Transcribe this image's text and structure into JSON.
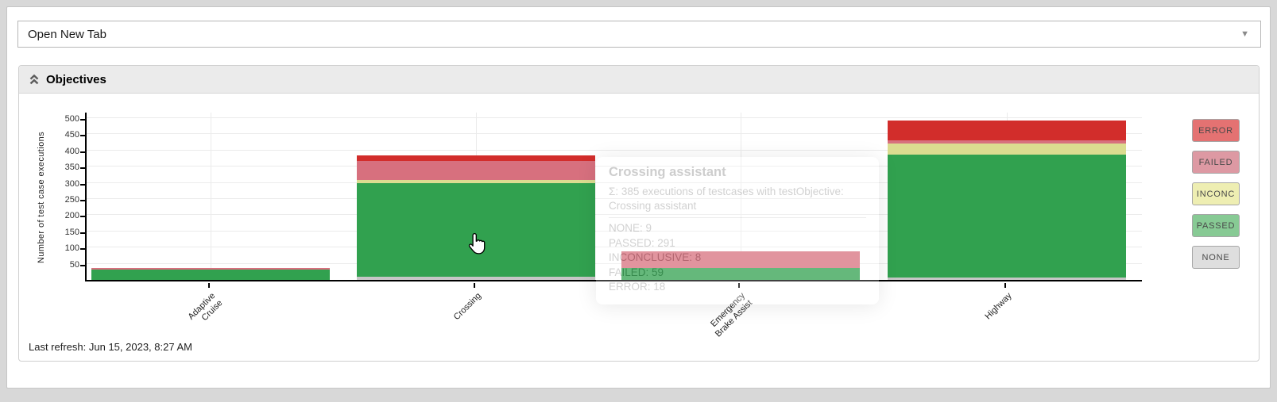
{
  "toolbar": {
    "dropdown_value": "Open New Tab"
  },
  "panel": {
    "title": "Objectives"
  },
  "footer": {
    "last_refresh": "Last refresh: Jun 15, 2023, 8:27 AM"
  },
  "legend": {
    "items": [
      {
        "label": "ERROR",
        "color": "#e47272"
      },
      {
        "label": "FAILED",
        "color": "#dd99a3"
      },
      {
        "label": "INCONC",
        "color": "#eeeeb2"
      },
      {
        "label": "PASSED",
        "color": "#87ca94"
      },
      {
        "label": "NONE",
        "color": "#dedede"
      }
    ]
  },
  "chart_data": {
    "type": "bar",
    "stacked": true,
    "ylabel": "Number of test case executions",
    "xlabel": "",
    "ylim": [
      0,
      522
    ],
    "yticks": [
      50,
      100,
      150,
      200,
      250,
      300,
      350,
      400,
      450,
      500
    ],
    "grid": true,
    "legend_position": "right",
    "categories": [
      "Adaptive Cruise",
      "Crossing",
      "Emergency Brake Assist",
      "Highway"
    ],
    "category_label_lines": [
      [
        "Adaptive",
        "Cruise"
      ],
      [
        "Crossing"
      ],
      [
        "Emergency",
        "Brake Assist"
      ],
      [
        "Highway"
      ]
    ],
    "series": [
      {
        "name": "NONE",
        "color": "#c6c6c6",
        "values": [
          0,
          9,
          0,
          8
        ]
      },
      {
        "name": "PASSED",
        "color": "#31a14f",
        "values": [
          32,
          291,
          37,
          380
        ]
      },
      {
        "name": "INCONC",
        "color": "#dbdc90",
        "values": [
          0,
          8,
          0,
          33
        ]
      },
      {
        "name": "FAILED",
        "color": "#d7707e",
        "values": [
          4,
          59,
          51,
          10
        ]
      },
      {
        "name": "ERROR",
        "color": "#d22d2b",
        "values": [
          0,
          18,
          0,
          61
        ]
      }
    ],
    "hovered_category": "Crossing",
    "tooltip": {
      "title": "Crossing assistant",
      "summary": "Σ: 385 executions of testcases with testObjective: Crossing assistant",
      "rows": [
        "NONE: 9",
        "PASSED: 291",
        "INCONCLUSIVE: 8",
        "FAILED: 59",
        "ERROR: 18"
      ],
      "total": 385
    }
  }
}
